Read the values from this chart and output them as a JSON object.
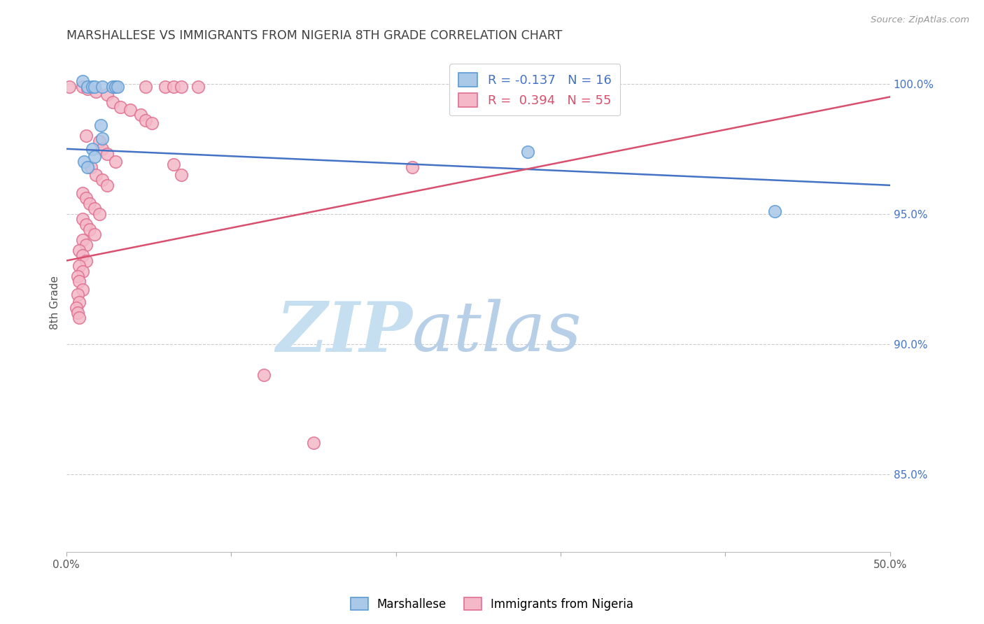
{
  "title": "MARSHALLESE VS IMMIGRANTS FROM NIGERIA 8TH GRADE CORRELATION CHART",
  "source": "Source: ZipAtlas.com",
  "ylabel": "8th Grade",
  "ytick_labels": [
    "85.0%",
    "90.0%",
    "95.0%",
    "100.0%"
  ],
  "ytick_values": [
    0.85,
    0.9,
    0.95,
    1.0
  ],
  "xlim": [
    0.0,
    0.5
  ],
  "ylim": [
    0.82,
    1.012
  ],
  "legend_blue_r": "R = -0.137",
  "legend_blue_n": "N = 16",
  "legend_pink_r": "R =  0.394",
  "legend_pink_n": "N = 55",
  "watermark_zip": "ZIP",
  "watermark_atlas": "atlas",
  "blue_dots": [
    [
      0.01,
      1.001
    ],
    [
      0.013,
      0.999
    ],
    [
      0.016,
      0.999
    ],
    [
      0.017,
      0.999
    ],
    [
      0.022,
      0.999
    ],
    [
      0.028,
      0.999
    ],
    [
      0.03,
      0.999
    ],
    [
      0.031,
      0.999
    ],
    [
      0.021,
      0.984
    ],
    [
      0.022,
      0.979
    ],
    [
      0.016,
      0.975
    ],
    [
      0.017,
      0.972
    ],
    [
      0.011,
      0.97
    ],
    [
      0.013,
      0.968
    ],
    [
      0.28,
      0.974
    ],
    [
      0.43,
      0.951
    ]
  ],
  "pink_dots": [
    [
      0.002,
      0.999
    ],
    [
      0.01,
      0.999
    ],
    [
      0.03,
      0.999
    ],
    [
      0.048,
      0.999
    ],
    [
      0.06,
      0.999
    ],
    [
      0.065,
      0.999
    ],
    [
      0.07,
      0.999
    ],
    [
      0.08,
      0.999
    ],
    [
      0.013,
      0.998
    ],
    [
      0.018,
      0.997
    ],
    [
      0.025,
      0.996
    ],
    [
      0.028,
      0.993
    ],
    [
      0.033,
      0.991
    ],
    [
      0.039,
      0.99
    ],
    [
      0.045,
      0.988
    ],
    [
      0.048,
      0.986
    ],
    [
      0.052,
      0.985
    ],
    [
      0.012,
      0.98
    ],
    [
      0.02,
      0.978
    ],
    [
      0.022,
      0.975
    ],
    [
      0.025,
      0.973
    ],
    [
      0.03,
      0.97
    ],
    [
      0.015,
      0.968
    ],
    [
      0.018,
      0.965
    ],
    [
      0.022,
      0.963
    ],
    [
      0.025,
      0.961
    ],
    [
      0.01,
      0.958
    ],
    [
      0.012,
      0.956
    ],
    [
      0.014,
      0.954
    ],
    [
      0.017,
      0.952
    ],
    [
      0.02,
      0.95
    ],
    [
      0.01,
      0.948
    ],
    [
      0.012,
      0.946
    ],
    [
      0.014,
      0.944
    ],
    [
      0.017,
      0.942
    ],
    [
      0.01,
      0.94
    ],
    [
      0.012,
      0.938
    ],
    [
      0.008,
      0.936
    ],
    [
      0.01,
      0.934
    ],
    [
      0.012,
      0.932
    ],
    [
      0.008,
      0.93
    ],
    [
      0.01,
      0.928
    ],
    [
      0.007,
      0.926
    ],
    [
      0.008,
      0.924
    ],
    [
      0.01,
      0.921
    ],
    [
      0.007,
      0.919
    ],
    [
      0.008,
      0.916
    ],
    [
      0.006,
      0.914
    ],
    [
      0.007,
      0.912
    ],
    [
      0.008,
      0.91
    ],
    [
      0.065,
      0.969
    ],
    [
      0.07,
      0.965
    ],
    [
      0.12,
      0.888
    ],
    [
      0.15,
      0.862
    ],
    [
      0.21,
      0.968
    ]
  ],
  "blue_line_x": [
    0.0,
    0.5
  ],
  "blue_line_y": [
    0.975,
    0.961
  ],
  "pink_line_x": [
    0.0,
    0.5
  ],
  "pink_line_y": [
    0.932,
    0.995
  ],
  "blue_color": "#aac8e8",
  "blue_edge_color": "#5b9bd5",
  "pink_color": "#f4b8c8",
  "pink_edge_color": "#e07090",
  "blue_line_color": "#4472c4",
  "pink_line_color": "#d94f6e",
  "grid_color": "#cccccc",
  "watermark_zip_color": "#c5dff0",
  "watermark_atlas_color": "#b8cfe8",
  "title_color": "#404040",
  "axis_label_color": "#555555",
  "right_tick_color": "#4472c4",
  "tick_label_color": "#555555"
}
